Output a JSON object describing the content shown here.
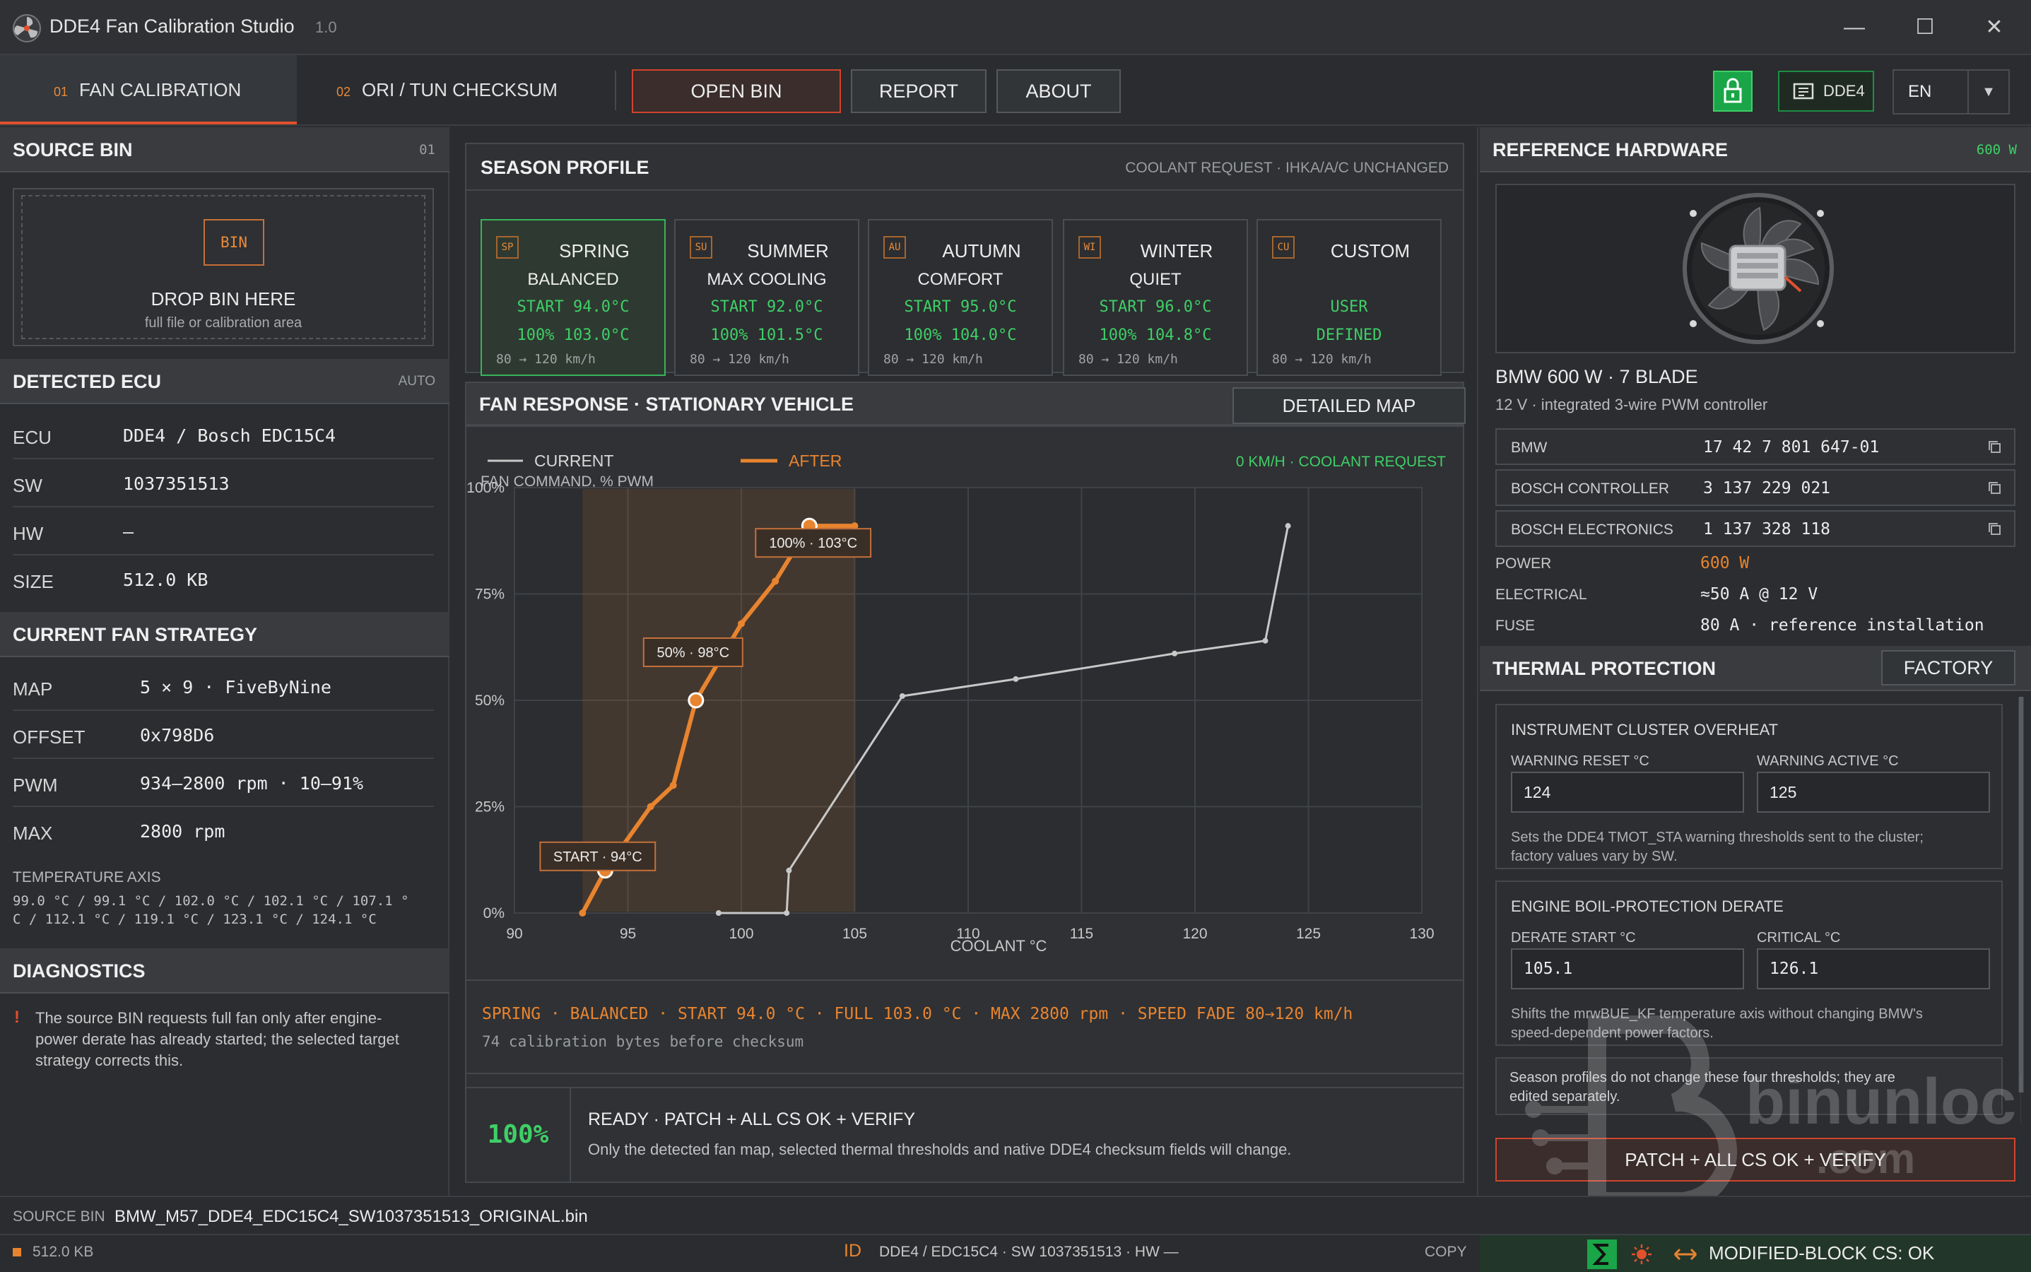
{
  "app": {
    "title": "DDE4 Fan Calibration Studio",
    "version": "1.0"
  },
  "tabs": [
    {
      "num": "01",
      "label": "FAN CALIBRATION"
    },
    {
      "num": "02",
      "label": "ORI / TUN CHECKSUM"
    }
  ],
  "toolbar": {
    "open_bin": "OPEN BIN",
    "report": "REPORT",
    "about": "ABOUT",
    "ecu_chip": "DDE4",
    "language": "EN"
  },
  "left": {
    "source_bin": {
      "title": "SOURCE BIN",
      "num": "01",
      "badge": "BIN",
      "drop_title": "DROP BIN HERE",
      "drop_sub": "full file or calibration area"
    },
    "detected_ecu": {
      "title": "DETECTED ECU",
      "mode": "AUTO",
      "rows": [
        {
          "k": "ECU",
          "v": "DDE4 / Bosch EDC15C4"
        },
        {
          "k": "SW",
          "v": "1037351513"
        },
        {
          "k": "HW",
          "v": "—"
        },
        {
          "k": "SIZE",
          "v": "512.0 KB"
        }
      ]
    },
    "fan_strategy": {
      "title": "CURRENT FAN STRATEGY",
      "rows": [
        {
          "k": "MAP",
          "v": "5 × 9 · FiveByNine"
        },
        {
          "k": "OFFSET",
          "v": "0x798D6"
        },
        {
          "k": "PWM",
          "v": "934–2800 rpm · 10–91%"
        },
        {
          "k": "MAX",
          "v": "2800 rpm"
        }
      ],
      "temp_axis_label": "TEMPERATURE AXIS",
      "temp_axis_line1": "99.0 °C / 99.1 °C / 102.0 °C / 102.1 °C / 107.1 °",
      "temp_axis_line2": "C / 112.1 °C / 119.1 °C / 123.1 °C / 124.1 °C"
    },
    "diagnostics": {
      "title": "DIAGNOSTICS",
      "mark": "!",
      "lines": [
        "The source BIN requests full fan only after engine-",
        "power derate has already started; the selected target",
        "strategy corrects this."
      ]
    }
  },
  "season": {
    "title": "SEASON PROFILE",
    "note": "COOLANT REQUEST · IHKA/A/C UNCHANGED",
    "cards": [
      {
        "badge": "SP",
        "l1": "SPRING",
        "l2": "BALANCED",
        "l3": "START 94.0°C",
        "l4": "100% 103.0°C",
        "l5": "80 → 120 km/h"
      },
      {
        "badge": "SU",
        "l1": "SUMMER",
        "l2": "MAX COOLING",
        "l3": "START 92.0°C",
        "l4": "100% 101.5°C",
        "l5": "80 → 120 km/h"
      },
      {
        "badge": "AU",
        "l1": "AUTUMN",
        "l2": "COMFORT",
        "l3": "START 95.0°C",
        "l4": "100% 104.0°C",
        "l5": "80 → 120 km/h"
      },
      {
        "badge": "WI",
        "l1": "WINTER",
        "l2": "QUIET",
        "l3": "START 96.0°C",
        "l4": "100% 104.8°C",
        "l5": "80 → 120 km/h"
      },
      {
        "badge": "CU",
        "l1": "CUSTOM",
        "l2": "",
        "l3": "USER",
        "l4": "DEFINED",
        "l5": "80 → 120 km/h"
      }
    ]
  },
  "fan_response": {
    "title": "FAN RESPONSE · STATIONARY VEHICLE",
    "detailed_map": "DETAILED MAP"
  },
  "chart_data": {
    "type": "line",
    "title": "",
    "xlabel": "COOLANT °C",
    "ylabel": "FAN COMMAND, % PWM",
    "xlim": [
      90,
      130
    ],
    "ylim": [
      0,
      100
    ],
    "x_ticks": [
      90,
      95,
      100,
      105,
      110,
      115,
      120,
      125,
      130
    ],
    "y_ticks": [
      0,
      25,
      50,
      75,
      100
    ],
    "y_tick_labels": [
      "0%",
      "25%",
      "50%",
      "75%",
      "100%"
    ],
    "legend_position": "top-left",
    "status_note": "0 KM/H · COOLANT REQUEST",
    "grid": true,
    "series": [
      {
        "name": "CURRENT",
        "color": "#c8c8c8",
        "points": [
          [
            99.0,
            0
          ],
          [
            102.0,
            0
          ],
          [
            102.1,
            10
          ],
          [
            107.1,
            51
          ],
          [
            112.1,
            55
          ],
          [
            119.1,
            61
          ],
          [
            123.1,
            64
          ],
          [
            124.1,
            91
          ]
        ]
      },
      {
        "name": "AFTER",
        "color": "#e8842f",
        "points": [
          [
            93.0,
            0
          ],
          [
            94.0,
            10
          ],
          [
            96.0,
            25
          ],
          [
            97.0,
            30
          ],
          [
            98.0,
            50
          ],
          [
            100.0,
            68
          ],
          [
            101.5,
            78
          ],
          [
            103.0,
            91
          ],
          [
            105.0,
            91
          ]
        ]
      }
    ],
    "annotations": [
      {
        "text": "START · 94°C",
        "x": 94.0,
        "y": 10
      },
      {
        "text": "50% · 98°C",
        "x": 98.0,
        "y": 50
      },
      {
        "text": "100% · 103°C",
        "x": 103.0,
        "y": 91
      }
    ],
    "shaded_band": {
      "x_from": 93.0,
      "x_to": 105.0
    }
  },
  "summary": {
    "line1": "SPRING · BALANCED · START 94.0 °C · FULL 103.0 °C · MAX 2800 rpm · SPEED FADE 80→120 km/h",
    "line2": "74 calibration bytes before checksum"
  },
  "ready": {
    "percent": "100%",
    "title": "READY · PATCH + ALL CS OK + VERIFY",
    "sub": "Only the detected fan map, selected thermal thresholds and native DDE4 checksum fields will change."
  },
  "hardware": {
    "title": "REFERENCE HARDWARE",
    "power_badge": "600 W",
    "name": "BMW 600 W · 7 BLADE",
    "sub": "12 V · integrated 3-wire PWM controller",
    "parts": [
      {
        "k": "BMW",
        "v": "17 42 7 801 647-01"
      },
      {
        "k": "BOSCH CONTROLLER",
        "v": "3 137 229 021"
      },
      {
        "k": "BOSCH ELECTRONICS",
        "v": "1 137 328 118"
      }
    ],
    "specs": [
      {
        "k": "POWER",
        "v": "600 W",
        "accent": true
      },
      {
        "k": "ELECTRICAL",
        "v": "≈50 A @ 12 V"
      },
      {
        "k": "FUSE",
        "v": "80 A · reference installation"
      }
    ]
  },
  "thermal": {
    "title": "THERMAL PROTECTION",
    "factory": "FACTORY",
    "cluster": {
      "title": "INSTRUMENT CLUSTER OVERHEAT",
      "f1_label": "WARNING RESET °C",
      "f1_value": "124",
      "f2_label": "WARNING ACTIVE °C",
      "f2_value": "125",
      "desc1": "Sets the DDE4 TMOT_STA warning thresholds sent to the cluster;",
      "desc2": "factory values vary by SW."
    },
    "engine": {
      "title": "ENGINE BOIL-PROTECTION DERATE",
      "f1_label": "DERATE START °C",
      "f1_value": "105.1",
      "f2_label": "CRITICAL °C",
      "f2_value": "126.1",
      "desc1": "Shifts the mrwBUE_KF temperature axis without changing BMW's",
      "desc2": "speed-dependent power factors."
    },
    "note1": "Season profiles do not change these four thresholds; they are",
    "note2": "edited separately."
  },
  "patch_button": "PATCH + ALL CS OK + VERIFY",
  "status": {
    "source_label": "SOURCE BIN",
    "source_file": "BMW_M57_DDE4_EDC15C4_SW1037351513_ORIGINAL.bin",
    "size": "512.0 KB",
    "id_label": "ID",
    "id_value": "DDE4 / EDC15C4 · SW 1037351513 · HW —",
    "copy": "COPY",
    "cs_status": "MODIFIED-BLOCK CS: OK"
  },
  "colors": {
    "accent_orange": "#e8842f",
    "accent_green": "#3fcf67",
    "accent_red": "#d2432c"
  }
}
